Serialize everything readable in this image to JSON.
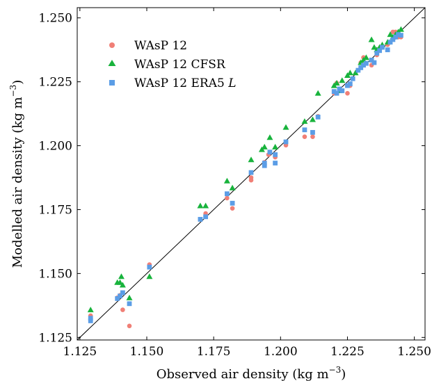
{
  "chart_data": {
    "type": "scatter",
    "xlabel": "Observed air density (kg m",
    "ylabel": "Modelled air density (kg m",
    "unit_exponent": "−3",
    "unit_close": ")",
    "xlim": [
      1.124,
      1.254
    ],
    "ylim": [
      1.124,
      1.254
    ],
    "xticks": [
      "1.125",
      "1.150",
      "1.175",
      "1.200",
      "1.225",
      "1.250"
    ],
    "yticks": [
      "1.125",
      "1.150",
      "1.175",
      "1.200",
      "1.225",
      "1.250"
    ],
    "reference_line": "1:1",
    "legend_position": "top-left",
    "grid": false,
    "series": [
      {
        "name": "WAsP 12",
        "marker": "circle",
        "color": "#f07f76",
        "points": [
          [
            1.129,
            1.1335
          ],
          [
            1.129,
            1.1322
          ],
          [
            1.139,
            1.1405
          ],
          [
            1.14,
            1.1415
          ],
          [
            1.141,
            1.1358
          ],
          [
            1.1435,
            1.1295
          ],
          [
            1.151,
            1.1535
          ],
          [
            1.151,
            1.1528
          ],
          [
            1.172,
            1.1735
          ],
          [
            1.18,
            1.1795
          ],
          [
            1.182,
            1.1755
          ],
          [
            1.189,
            1.1865
          ],
          [
            1.189,
            1.1875
          ],
          [
            1.194,
            1.1935
          ],
          [
            1.194,
            1.1925
          ],
          [
            1.1955,
            1.1965
          ],
          [
            1.198,
            1.1955
          ],
          [
            1.202,
            1.2002
          ],
          [
            1.209,
            1.2035
          ],
          [
            1.212,
            1.2035
          ],
          [
            1.214,
            1.2115
          ],
          [
            1.22,
            1.2205
          ],
          [
            1.221,
            1.2245
          ],
          [
            1.223,
            1.2215
          ],
          [
            1.225,
            1.2205
          ],
          [
            1.226,
            1.2235
          ],
          [
            1.229,
            1.2295
          ],
          [
            1.23,
            1.2325
          ],
          [
            1.231,
            1.2345
          ],
          [
            1.234,
            1.2315
          ],
          [
            1.236,
            1.2355
          ],
          [
            1.238,
            1.2385
          ],
          [
            1.24,
            1.2395
          ],
          [
            1.242,
            1.2445
          ],
          [
            1.243,
            1.2445
          ],
          [
            1.244,
            1.2425
          ],
          [
            1.245,
            1.2425
          ]
        ]
      },
      {
        "name": "WAsP 12 CFSR",
        "marker": "triangle",
        "color": "#18b33c",
        "points": [
          [
            1.129,
            1.1358
          ],
          [
            1.139,
            1.1465
          ],
          [
            1.14,
            1.1465
          ],
          [
            1.1405,
            1.1488
          ],
          [
            1.141,
            1.1455
          ],
          [
            1.1435,
            1.1405
          ],
          [
            1.151,
            1.1488
          ],
          [
            1.17,
            1.1765
          ],
          [
            1.172,
            1.1765
          ],
          [
            1.18,
            1.1862
          ],
          [
            1.182,
            1.1835
          ],
          [
            1.189,
            1.1945
          ],
          [
            1.193,
            1.1985
          ],
          [
            1.194,
            1.1995
          ],
          [
            1.196,
            1.2032
          ],
          [
            1.198,
            1.1995
          ],
          [
            1.202,
            1.2072
          ],
          [
            1.209,
            1.2095
          ],
          [
            1.212,
            1.2102
          ],
          [
            1.214,
            1.2205
          ],
          [
            1.22,
            1.2235
          ],
          [
            1.221,
            1.2245
          ],
          [
            1.222,
            1.2215
          ],
          [
            1.223,
            1.2255
          ],
          [
            1.225,
            1.2275
          ],
          [
            1.226,
            1.2285
          ],
          [
            1.228,
            1.2285
          ],
          [
            1.23,
            1.2325
          ],
          [
            1.231,
            1.2335
          ],
          [
            1.232,
            1.2345
          ],
          [
            1.234,
            1.2415
          ],
          [
            1.235,
            1.2385
          ],
          [
            1.236,
            1.2375
          ],
          [
            1.237,
            1.2385
          ],
          [
            1.238,
            1.2395
          ],
          [
            1.24,
            1.2405
          ],
          [
            1.241,
            1.2435
          ],
          [
            1.242,
            1.2425
          ],
          [
            1.243,
            1.2435
          ],
          [
            1.244,
            1.2445
          ],
          [
            1.245,
            1.2455
          ]
        ]
      },
      {
        "name": "WAsP 12 ERA5 ",
        "name_suffix": "L",
        "marker": "square",
        "color": "#5b9de6",
        "points": [
          [
            1.129,
            1.1315
          ],
          [
            1.129,
            1.1325
          ],
          [
            1.139,
            1.1402
          ],
          [
            1.14,
            1.1412
          ],
          [
            1.141,
            1.1425
          ],
          [
            1.1435,
            1.1382
          ],
          [
            1.151,
            1.1525
          ],
          [
            1.17,
            1.1712
          ],
          [
            1.172,
            1.1722
          ],
          [
            1.18,
            1.1812
          ],
          [
            1.182,
            1.1775
          ],
          [
            1.189,
            1.1895
          ],
          [
            1.194,
            1.1922
          ],
          [
            1.194,
            1.1932
          ],
          [
            1.196,
            1.1975
          ],
          [
            1.198,
            1.1932
          ],
          [
            1.198,
            1.1965
          ],
          [
            1.202,
            1.2015
          ],
          [
            1.209,
            1.2062
          ],
          [
            1.212,
            1.2052
          ],
          [
            1.214,
            1.2112
          ],
          [
            1.22,
            1.2212
          ],
          [
            1.221,
            1.2205
          ],
          [
            1.222,
            1.2222
          ],
          [
            1.223,
            1.2215
          ],
          [
            1.225,
            1.2235
          ],
          [
            1.226,
            1.2242
          ],
          [
            1.227,
            1.2262
          ],
          [
            1.229,
            1.2295
          ],
          [
            1.23,
            1.2305
          ],
          [
            1.231,
            1.2315
          ],
          [
            1.232,
            1.2322
          ],
          [
            1.234,
            1.2335
          ],
          [
            1.235,
            1.2325
          ],
          [
            1.236,
            1.2362
          ],
          [
            1.237,
            1.2372
          ],
          [
            1.238,
            1.2385
          ],
          [
            1.24,
            1.2375
          ],
          [
            1.241,
            1.2405
          ],
          [
            1.242,
            1.2415
          ],
          [
            1.243,
            1.2425
          ],
          [
            1.244,
            1.2435
          ],
          [
            1.245,
            1.2432
          ]
        ]
      }
    ]
  }
}
